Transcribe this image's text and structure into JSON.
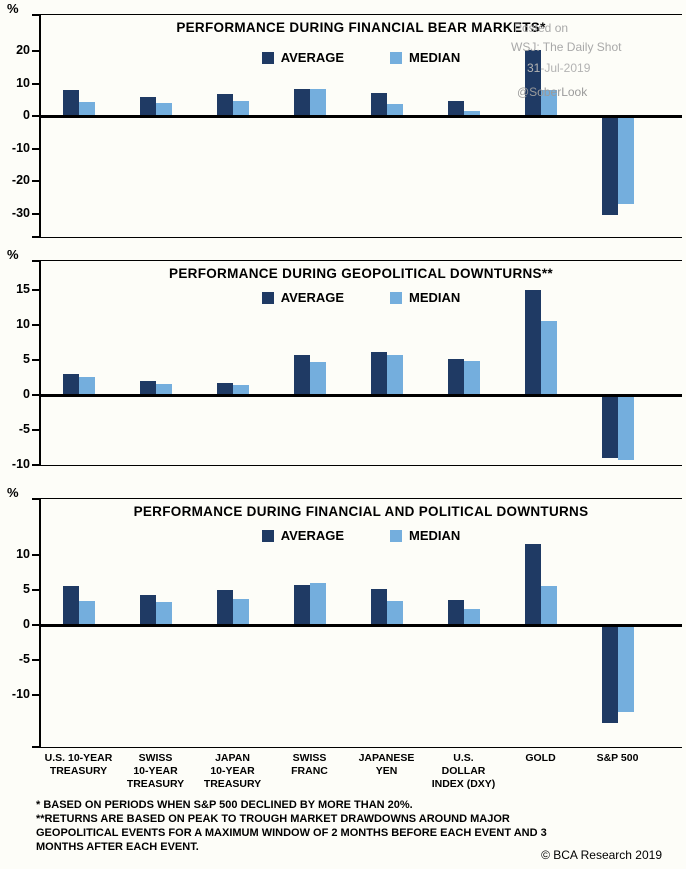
{
  "watermark": {
    "line1": "Posted on",
    "line2": "WSJ: The Daily Shot",
    "line3": "31-Jul-2019",
    "line4": "@SoberLook"
  },
  "colors": {
    "average": "#1f3a64",
    "median": "#74aedd"
  },
  "chart_data": [
    {
      "type": "bar",
      "title": "PERFORMANCE DURING FINANCIAL BEAR MARKETS*",
      "ylabel": "%",
      "ylim": [
        -37.5,
        31.5
      ],
      "yticks": [
        20,
        10,
        0,
        -10,
        -20,
        -30
      ],
      "grid": false,
      "legend_position": "top-center",
      "categories": [
        "U.S. 10-YEAR TREASURY",
        "SWISS 10-YEAR TREASURY",
        "JAPAN 10-YEAR TREASURY",
        "SWISS FRANC",
        "JAPANESE YEN",
        "U.S. DOLLAR INDEX (DXY)",
        "GOLD",
        "S&P 500"
      ],
      "series": [
        {
          "name": "AVERAGE",
          "values": [
            8.2,
            5.8,
            7.0,
            8.5,
            7.3,
            4.6,
            20.5,
            -30.5
          ]
        },
        {
          "name": "MEDIAN",
          "values": [
            4.3,
            4.0,
            4.6,
            8.5,
            3.7,
            1.5,
            8.0,
            -27.0
          ]
        }
      ]
    },
    {
      "type": "bar",
      "title": "PERFORMANCE DURING GEOPOLITICAL DOWNTURNS**",
      "ylabel": "%",
      "ylim": [
        -10.1,
        19.3
      ],
      "yticks": [
        15,
        10,
        5,
        0,
        -5,
        -10
      ],
      "grid": false,
      "legend_position": "top-center",
      "categories": [
        "U.S. 10-YEAR TREASURY",
        "SWISS 10-YEAR TREASURY",
        "JAPAN 10-YEAR TREASURY",
        "SWISS FRANC",
        "JAPANESE YEN",
        "U.S. DOLLAR INDEX (DXY)",
        "GOLD",
        "S&P 500"
      ],
      "series": [
        {
          "name": "AVERAGE",
          "values": [
            3.0,
            2.1,
            1.8,
            5.8,
            6.2,
            5.1,
            15.0,
            -9.0
          ]
        },
        {
          "name": "MEDIAN",
          "values": [
            2.6,
            1.6,
            1.4,
            4.7,
            5.8,
            4.9,
            10.6,
            -9.2
          ]
        }
      ]
    },
    {
      "type": "bar",
      "title": "PERFORMANCE DURING FINANCIAL AND POLITICAL DOWNTURNS",
      "ylabel": "%",
      "ylim": [
        -17.6,
        18.1
      ],
      "yticks": [
        10,
        5,
        0,
        -5,
        -10
      ],
      "grid": false,
      "legend_position": "top-center",
      "categories": [
        "U.S. 10-YEAR TREASURY",
        "SWISS 10-YEAR TREASURY",
        "JAPAN 10-YEAR TREASURY",
        "SWISS FRANC",
        "JAPANESE YEN",
        "U.S. DOLLAR INDEX (DXY)",
        "GOLD",
        "S&P 500"
      ],
      "series": [
        {
          "name": "AVERAGE",
          "values": [
            5.6,
            4.3,
            4.9,
            5.7,
            5.1,
            3.6,
            11.6,
            -14.0
          ]
        },
        {
          "name": "MEDIAN",
          "values": [
            3.4,
            3.3,
            3.7,
            5.9,
            3.4,
            2.3,
            5.6,
            -12.5
          ]
        }
      ]
    }
  ],
  "xaxis_labels": [
    [
      "U.S. 10-YEAR",
      "TREASURY"
    ],
    [
      "SWISS",
      "10-YEAR",
      "TREASURY"
    ],
    [
      "JAPAN",
      "10-YEAR",
      "TREASURY"
    ],
    [
      "SWISS",
      "FRANC"
    ],
    [
      "JAPANESE",
      "YEN"
    ],
    [
      "U.S.",
      "DOLLAR",
      "INDEX (DXY)"
    ],
    [
      "GOLD"
    ],
    [
      "S&P 500"
    ]
  ],
  "footnotes": [
    "* BASED ON PERIODS WHEN S&P 500 DECLINED BY MORE THAN 20%.",
    "**RETURNS ARE BASED ON PEAK TO TROUGH MARKET DRAWDOWNS AROUND MAJOR GEOPOLITICAL EVENTS FOR A MAXIMUM WINDOW OF 2 MONTHS BEFORE EACH EVENT AND 3 MONTHS AFTER EACH EVENT.",
    "3 MONTHS AFTER EACH EVENT."
  ],
  "copyright": "© BCA Research 2019"
}
